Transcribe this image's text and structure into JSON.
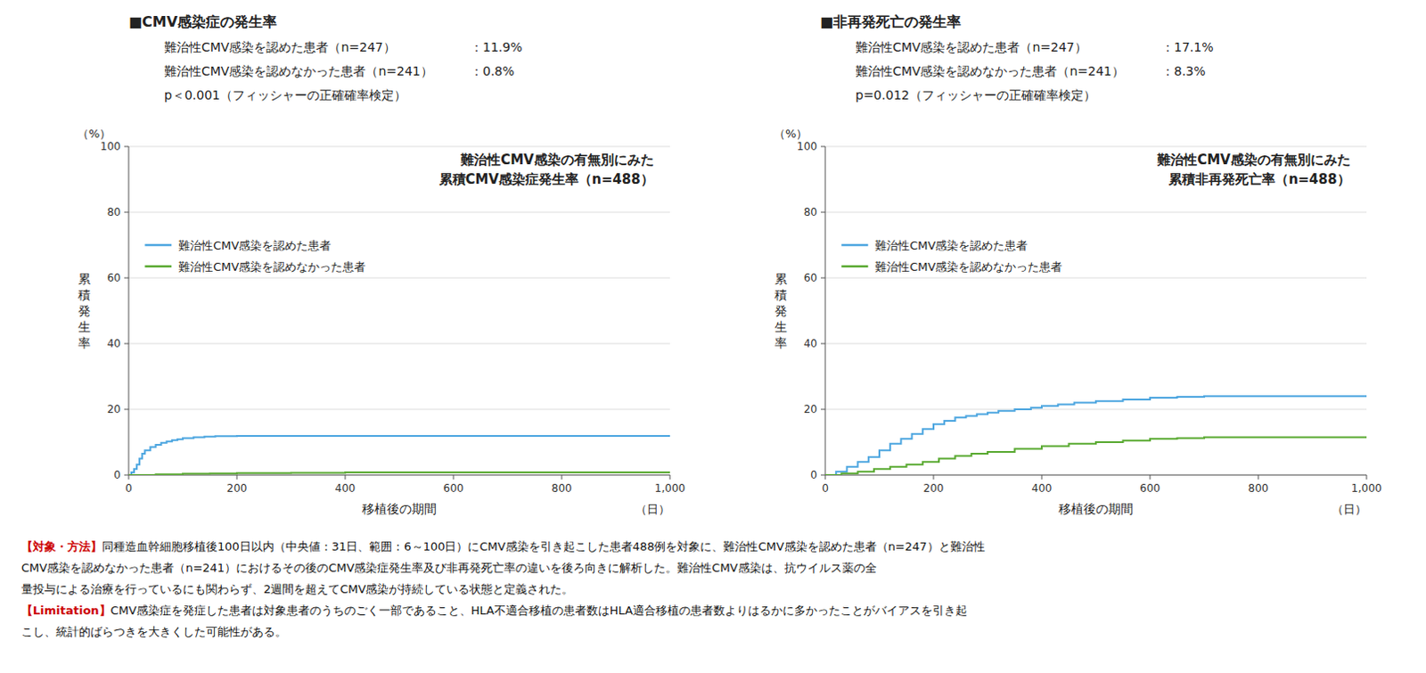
{
  "chart_data": [
    {
      "type": "step",
      "title": "難治性CMV感染の有無別にみた",
      "subtitle": "累積CMV感染症発生率（n=488）",
      "x_label": "移植後の期間",
      "y_label": "累\n積\n発\n生\n率",
      "annotations": [
        {
          "text": "（日）",
          "axis": "x"
        },
        {
          "text": "（%）",
          "axis": "y"
        }
      ],
      "header": {
        "title": "■CMV感染症の発生率",
        "rows": [
          {
            "label": "難治性CMV感染を認めた患者（n=247）",
            "value": "：11.9%"
          },
          {
            "label": "難治性CMV感染を認めなかった患者（n=241）",
            "value": "：0.8%"
          },
          {
            "label": "p＜0.001（フィッシャーの正確確率検定）"
          }
        ]
      },
      "series": [
        {
          "name": "難治性CMV感染を認めた患者",
          "color": "#4da6e0",
          "x": [
            0,
            5,
            10,
            15,
            20,
            25,
            30,
            40,
            50,
            60,
            70,
            80,
            90,
            100,
            120,
            140,
            160,
            180,
            200,
            220,
            250,
            300,
            400,
            500,
            600,
            700,
            800,
            900,
            1000
          ],
          "values": [
            0,
            0.8,
            1.8,
            3.2,
            5.0,
            6.5,
            7.5,
            8.5,
            9.2,
            9.8,
            10.2,
            10.6,
            10.9,
            11.2,
            11.5,
            11.7,
            11.8,
            11.8,
            11.9,
            11.9,
            11.9,
            11.9,
            11.9,
            11.9,
            11.9,
            11.9,
            11.9,
            11.9,
            11.9
          ]
        },
        {
          "name": "難治性CMV感染を認めなかった患者",
          "color": "#5aaa32",
          "x": [
            0,
            50,
            100,
            150,
            200,
            300,
            400,
            500,
            600,
            700,
            800,
            900,
            1000
          ],
          "values": [
            0,
            0.2,
            0.4,
            0.5,
            0.6,
            0.7,
            0.8,
            0.8,
            0.8,
            0.8,
            0.8,
            0.8,
            0.8
          ]
        }
      ],
      "xlim": [
        0,
        1000
      ],
      "ylim": [
        0,
        100
      ],
      "xticks": [
        0,
        200,
        400,
        600,
        800,
        {
          "value": 1000,
          "label": "1,000"
        }
      ],
      "yticks": [
        0,
        20,
        40,
        60,
        80,
        100
      ],
      "grid": true,
      "legend": "upper left"
    },
    {
      "type": "step",
      "title": "難治性CMV感染の有無別にみた",
      "subtitle": "累積非再発死亡率（n=488）",
      "x_label": "移植後の期間",
      "y_label": "累\n積\n発\n生\n率",
      "annotations": [
        {
          "text": "（日）",
          "axis": "x"
        },
        {
          "text": "（%）",
          "axis": "y"
        }
      ],
      "header": {
        "title": "■非再発死亡の発生率",
        "rows": [
          {
            "label": "難治性CMV感染を認めた患者（n=247）",
            "value": "：17.1%"
          },
          {
            "label": "難治性CMV感染を認めなかった患者（n=241）",
            "value": "：8.3%"
          },
          {
            "label": "p=0.012（フィッシャーの正確確率検定）"
          }
        ]
      },
      "series": [
        {
          "name": "難治性CMV感染を認めた患者",
          "color": "#4da6e0",
          "x": [
            0,
            20,
            40,
            60,
            80,
            100,
            120,
            140,
            160,
            180,
            200,
            220,
            240,
            260,
            280,
            300,
            320,
            350,
            380,
            400,
            430,
            460,
            500,
            550,
            600,
            650,
            700,
            750,
            800,
            900,
            1000
          ],
          "values": [
            0,
            1.0,
            2.5,
            4.0,
            5.5,
            7.5,
            9.5,
            11.0,
            12.5,
            14.0,
            15.5,
            16.5,
            17.5,
            18.0,
            18.5,
            19.0,
            19.5,
            20.0,
            20.5,
            21.0,
            21.5,
            22.0,
            22.5,
            23.0,
            23.5,
            23.8,
            24.0,
            24.0,
            24.0,
            24.0,
            24.0
          ]
        },
        {
          "name": "難治性CMV感染を認めなかった患者",
          "color": "#5aaa32",
          "x": [
            0,
            30,
            60,
            90,
            120,
            150,
            180,
            210,
            240,
            270,
            300,
            350,
            400,
            450,
            500,
            550,
            600,
            650,
            700,
            750,
            800,
            900,
            1000
          ],
          "values": [
            0,
            0.5,
            1.0,
            1.8,
            2.5,
            3.2,
            4.0,
            5.0,
            5.8,
            6.5,
            7.0,
            8.0,
            8.8,
            9.5,
            10.0,
            10.5,
            11.0,
            11.2,
            11.5,
            11.5,
            11.5,
            11.5,
            11.5
          ]
        }
      ],
      "xlim": [
        0,
        1000
      ],
      "ylim": [
        0,
        100
      ],
      "xticks": [
        0,
        200,
        400,
        600,
        800,
        {
          "value": 1000,
          "label": "1,000"
        }
      ],
      "yticks": [
        0,
        20,
        40,
        60,
        80,
        100
      ],
      "grid": true,
      "legend": "upper left"
    }
  ],
  "footer": {
    "color": "#cc0000",
    "lines": [
      {
        "highlight": "【対象・方法】",
        "text": "同種造血幹細胞移植後100日以内（中央値：31日、範囲：6～100日）にCMV感染を引き起こした患者488例を対象に、難治性CMV感染を認めた患者（n=247）と難治性"
      },
      {
        "text": "CMV感染を認めなかった患者（n=241）におけるその後のCMV感染症発生率及び非再発死亡率の違いを後ろ向きに解析した。難治性CMV感染は、抗ウイルス薬の全"
      },
      {
        "text": "量投与による治療を行っているにも関わらず、2週間を超えてCMV感染が持続している状態と定義された。"
      },
      {
        "highlight": "【Limitation】",
        "text": "CMV感染症を発症した患者は対象患者のうちのごく一部であること、HLA不適合移植の患者数はHLA適合移植の患者数よりはるかに多かったことがバイアスを引き起"
      },
      {
        "text": "こし、統計的ばらつきを大きくした可能性がある。"
      }
    ]
  }
}
